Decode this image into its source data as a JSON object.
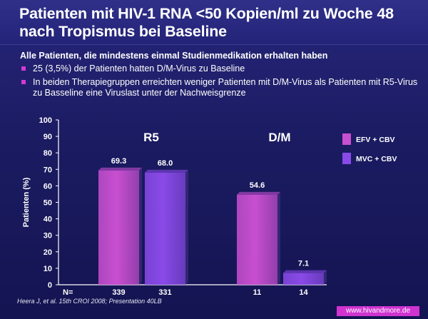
{
  "title": "Patienten mit HIV-1 RNA <50 Kopien/ml zu Woche 48\nnach Tropismus bei Baseline",
  "subheading": "Alle Patienten, die mindestens einmal Studienmedikation erhalten haben",
  "bullets": [
    "25 (3,5%) der Patienten hatten D/M-Virus zu Baseline",
    "In beiden Therapiegruppen erreichten weniger Patienten mit D/M-Virus als Patienten mit R5-Virus zu Basseline eine Viruslast unter der Nachweisgrenze"
  ],
  "footnote": "Heera J, et al. 15th CROI 2008; Presentation 40LB",
  "watermark": "www.hivandmore.de",
  "colors": {
    "efv": "#c84fd0",
    "mvc": "#8a4ae8",
    "bullet": "#d33ad3"
  },
  "chart_data": {
    "type": "bar",
    "categories": [
      "R5",
      "D/M"
    ],
    "series": [
      {
        "name": "EFV + CBV",
        "values": [
          69.3,
          54.6
        ],
        "labels": [
          "69.3",
          "54.6"
        ],
        "n": [
          "339",
          "11"
        ]
      },
      {
        "name": "MVC + CBV",
        "values": [
          68.0,
          7.1
        ],
        "labels": [
          "68.0",
          "7.1"
        ],
        "n": [
          "331",
          "14"
        ]
      }
    ],
    "ylabel": "Patienten (%)",
    "ylim": [
      0,
      100
    ],
    "yticks": [
      0,
      10,
      20,
      30,
      40,
      50,
      60,
      70,
      80,
      90,
      100
    ],
    "n_label": "N=",
    "legend_position": "right"
  }
}
